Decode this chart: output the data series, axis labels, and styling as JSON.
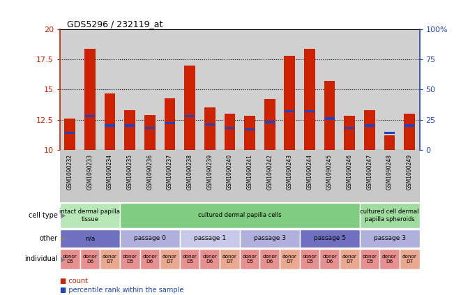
{
  "title": "GDS5296 / 232119_at",
  "samples": [
    "GSM1090232",
    "GSM1090233",
    "GSM1090234",
    "GSM1090235",
    "GSM1090236",
    "GSM1090237",
    "GSM1090238",
    "GSM1090239",
    "GSM1090240",
    "GSM1090241",
    "GSM1090242",
    "GSM1090243",
    "GSM1090244",
    "GSM1090245",
    "GSM1090246",
    "GSM1090247",
    "GSM1090248",
    "GSM1090249"
  ],
  "red_values": [
    12.6,
    18.4,
    14.7,
    13.3,
    12.9,
    14.3,
    17.0,
    13.5,
    13.0,
    12.8,
    14.2,
    17.8,
    18.4,
    15.7,
    12.8,
    13.3,
    11.2,
    13.0
  ],
  "blue_values": [
    11.4,
    12.8,
    12.0,
    12.0,
    11.8,
    12.2,
    12.8,
    12.1,
    11.8,
    11.7,
    12.3,
    13.2,
    13.2,
    12.6,
    11.8,
    12.0,
    11.4,
    12.0
  ],
  "y_min": 10,
  "y_max": 20,
  "y_left_ticks": [
    10,
    12.5,
    15,
    17.5,
    20
  ],
  "y_right_ticks": [
    0,
    25,
    50,
    75,
    100
  ],
  "grid_lines": [
    12.5,
    15.0,
    17.5
  ],
  "bar_color": "#cc2200",
  "blue_color": "#2244bb",
  "plot_bg_color": "#d0d0d0",
  "xlabel_bg_color": "#c8c8c8",
  "cell_type_groups": [
    {
      "label": "intact dermal papilla\ntissue",
      "start": 0,
      "end": 3,
      "color": "#b8e8b8"
    },
    {
      "label": "cultured dermal papilla cells",
      "start": 3,
      "end": 15,
      "color": "#80cc80"
    },
    {
      "label": "cultured cell dermal\npapilla spheroids",
      "start": 15,
      "end": 18,
      "color": "#a0dca0"
    }
  ],
  "other_groups": [
    {
      "label": "n/a",
      "start": 0,
      "end": 3,
      "color": "#7070c0"
    },
    {
      "label": "passage 0",
      "start": 3,
      "end": 6,
      "color": "#b0b0dc"
    },
    {
      "label": "passage 1",
      "start": 6,
      "end": 9,
      "color": "#c8c8e8"
    },
    {
      "label": "passage 3",
      "start": 9,
      "end": 12,
      "color": "#b0b0dc"
    },
    {
      "label": "passage 5",
      "start": 12,
      "end": 15,
      "color": "#7070c0"
    },
    {
      "label": "passage 3",
      "start": 15,
      "end": 18,
      "color": "#b0b0dc"
    }
  ],
  "individual_labels": [
    "donor\nD5",
    "donor\nD6",
    "donor\nD7",
    "donor\nD5",
    "donor\nD6",
    "donor\nD7",
    "donor\nD5",
    "donor\nD6",
    "donor\nD7",
    "donor\nD5",
    "donor\nD6",
    "donor\nD7",
    "donor\nD5",
    "donor\nD6",
    "donor\nD7",
    "donor\nD5",
    "donor\nD6",
    "donor\nD7"
  ],
  "individual_colors": [
    "#e89090",
    "#e89090",
    "#eaa890",
    "#e89090",
    "#e89090",
    "#eaa890",
    "#e89090",
    "#e89090",
    "#eaa890",
    "#e89090",
    "#e89090",
    "#eaa890",
    "#e89090",
    "#e89090",
    "#eaa890",
    "#e89090",
    "#e89090",
    "#eaa890"
  ],
  "row_labels": [
    "cell type",
    "other",
    "individual"
  ],
  "legend_count_label": "count",
  "legend_pct_label": "percentile rank within the sample"
}
